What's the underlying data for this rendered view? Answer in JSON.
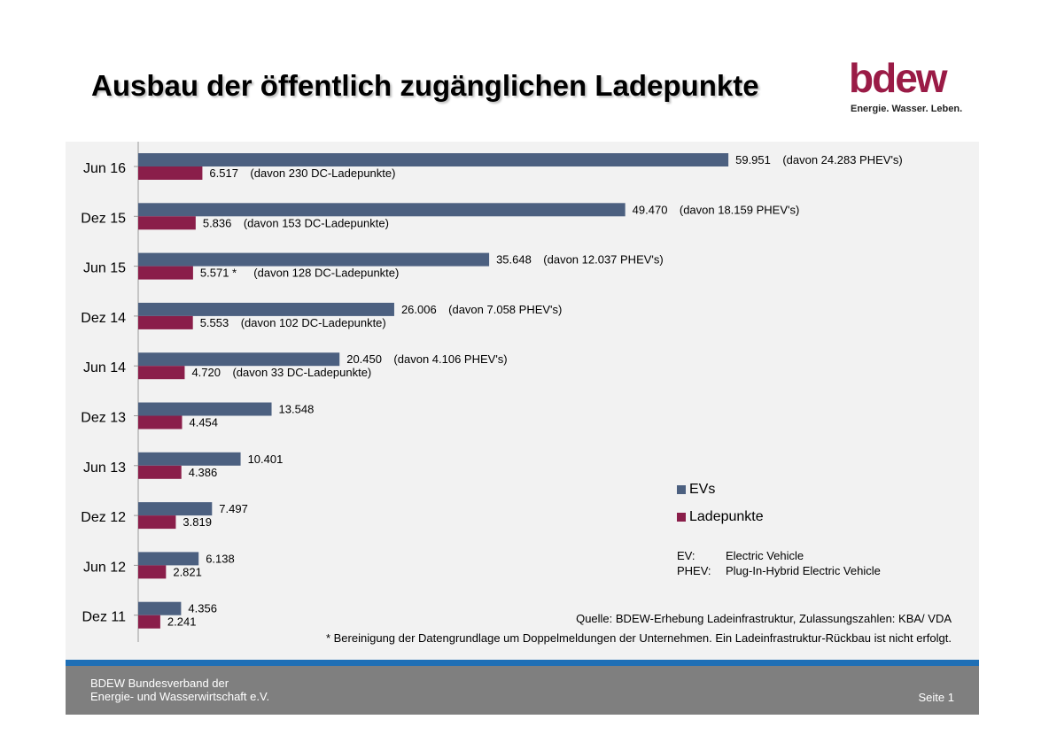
{
  "header": {
    "title": "Ausbau der öffentlich zugänglichen Ladepunkte",
    "logo_word": "bdew",
    "logo_tagline": "Energie. Wasser. Leben."
  },
  "colors": {
    "evs": "#4c6080",
    "ladepunkte": "#8a1e4a",
    "panel": "#f2f2f2",
    "footer": "#7f7f7f",
    "footer_line": "#1f6fb5"
  },
  "chart_data": {
    "type": "bar",
    "orientation": "horizontal",
    "categories": [
      "Jun 16",
      "Dez 15",
      "Jun 15",
      "Dez 14",
      "Jun 14",
      "Dez 13",
      "Jun 13",
      "Dez 12",
      "Jun 12",
      "Dez 11"
    ],
    "series": [
      {
        "name": "EVs",
        "values": [
          59951,
          49470,
          35648,
          26006,
          20450,
          13548,
          10401,
          7497,
          6138,
          4356
        ],
        "labels": [
          "59.951",
          "49.470",
          "35.648",
          "26.006",
          "20.450",
          "13.548",
          "10.401",
          "7.497",
          "6.138",
          "4.356"
        ],
        "notes": [
          "(davon 24.283 PHEV's)",
          "(davon 18.159 PHEV's)",
          "(davon 12.037 PHEV's)",
          "(davon 7.058 PHEV's)",
          "(davon 4.106 PHEV's)",
          "",
          "",
          "",
          "",
          ""
        ]
      },
      {
        "name": "Ladepunkte",
        "values": [
          6517,
          5836,
          5571,
          5553,
          4720,
          4454,
          4386,
          3819,
          2821,
          2241
        ],
        "labels": [
          "6.517",
          "5.836",
          "5.571 *",
          "5.553",
          "4.720",
          "4.454",
          "4.386",
          "3.819",
          "2.821",
          "2.241"
        ],
        "notes": [
          "(davon 230 DC-Ladepunkte)",
          "(davon 153 DC-Ladepunkte)",
          "(davon 128 DC-Ladepunkte)",
          "(davon 102 DC-Ladepunkte)",
          "(davon 33 DC-Ladepunkte)",
          "",
          "",
          "",
          "",
          ""
        ]
      }
    ],
    "xlim": [
      0,
      72000
    ],
    "grid": false,
    "legend": "right"
  },
  "abbreviations": [
    {
      "term": "EV:",
      "meaning": "Electric Vehicle"
    },
    {
      "term": "PHEV:",
      "meaning": "Plug-In-Hybrid Electric Vehicle"
    }
  ],
  "source": "Quelle: BDEW-Erhebung Ladeinfrastruktur, Zulassungszahlen: KBA/ VDA",
  "footnote": "* Bereinigung der Datengrundlage um Doppelmeldungen der Unternehmen. Ein Ladeinfrastruktur-Rückbau ist nicht erfolgt.",
  "footer": {
    "org_line1": "BDEW Bundesverband der",
    "org_line2": "Energie- und Wasserwirtschaft e.V.",
    "page": "Seite 1"
  }
}
